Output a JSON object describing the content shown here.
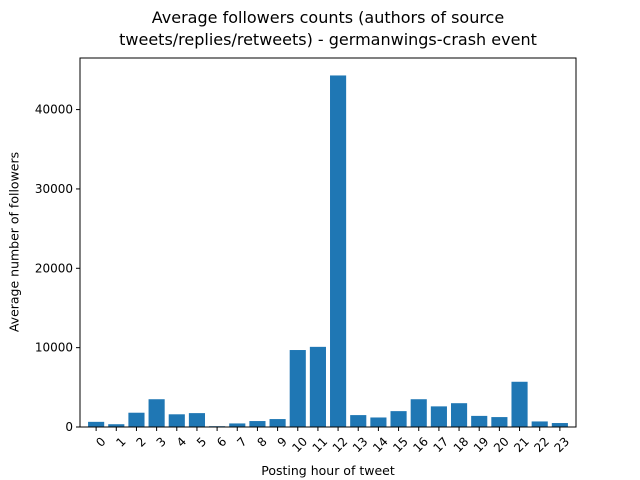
{
  "chart_data": {
    "type": "bar",
    "title_lines": [
      "Average followers counts (authors of source",
      "tweets/replies/retweets) - germanwings-crash event"
    ],
    "xlabel": "Posting hour of tweet",
    "ylabel": "Average number of followers",
    "categories": [
      "0",
      "1",
      "2",
      "3",
      "4",
      "5",
      "6",
      "7",
      "8",
      "9",
      "10",
      "11",
      "12",
      "13",
      "14",
      "15",
      "16",
      "17",
      "18",
      "19",
      "20",
      "21",
      "22",
      "23"
    ],
    "values": [
      650,
      350,
      1800,
      3500,
      1600,
      1750,
      100,
      450,
      750,
      1000,
      9700,
      10100,
      44300,
      1500,
      1200,
      2000,
      3500,
      2600,
      3000,
      1400,
      1250,
      5700,
      700,
      500
    ],
    "yticks": [
      0,
      10000,
      20000,
      30000,
      40000
    ],
    "ylim": [
      0,
      46500
    ],
    "bar_color": "#1f77b4",
    "grid": false,
    "legend": "none"
  }
}
